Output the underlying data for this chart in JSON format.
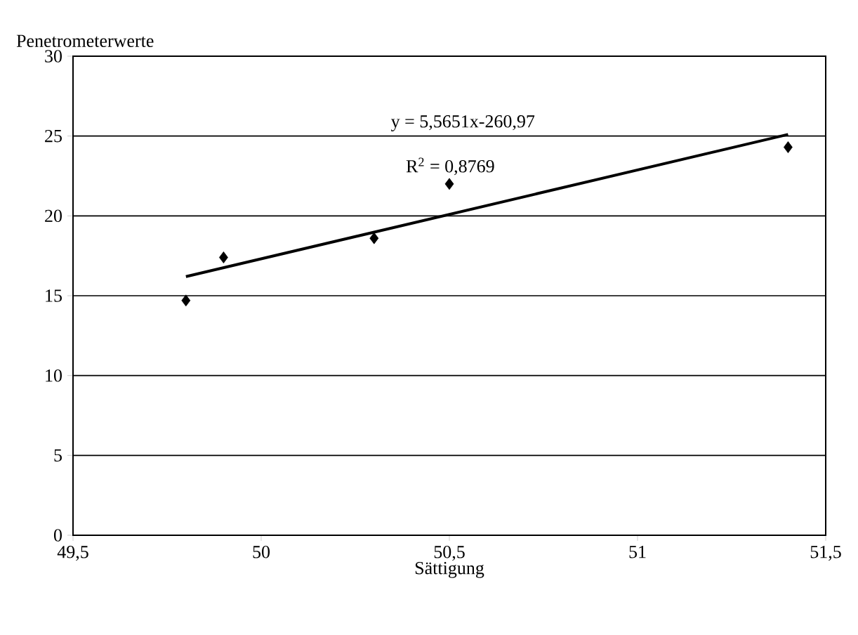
{
  "chart_data": {
    "type": "scatter",
    "xlabel": "Sättigung",
    "ylabel": "Penetrometerwerte",
    "annotations": [
      "y = 5,5651x-260,97",
      "R$^{2}$ = 0,8769"
    ],
    "xlim": [
      49.5,
      51.5
    ],
    "xticks": [
      {
        "value": 49.5,
        "label": "49,5"
      },
      50,
      {
        "value": 50.5,
        "label": "50,5"
      },
      51,
      {
        "value": 51.5,
        "label": "51,5"
      }
    ],
    "ylim": [
      0,
      30
    ],
    "yticks": [
      0,
      5,
      10,
      15,
      20,
      25,
      30
    ],
    "grid": "y",
    "marker": "diamond",
    "series": [
      {
        "color": "#000000",
        "x": [
          49.8,
          49.9,
          50.3,
          50.5,
          51.4
        ],
        "values": [
          14.7,
          17.4,
          18.6,
          22.0,
          24.3
        ]
      },
      {
        "type": "line",
        "color": "#000000",
        "marker": "none",
        "line_style": "solid",
        "x": [
          49.8,
          51.4
        ],
        "values": [
          16.2,
          25.1
        ]
      }
    ]
  }
}
